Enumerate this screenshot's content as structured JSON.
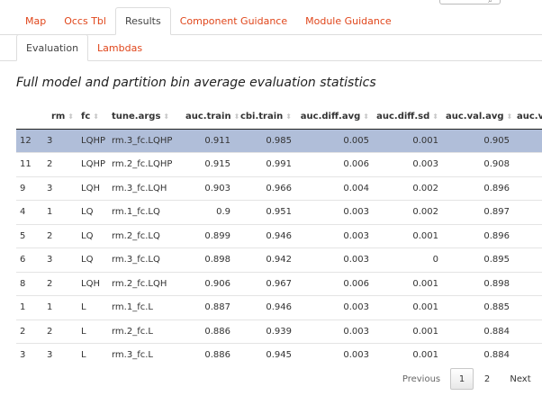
{
  "main_tabs": [
    {
      "label": "Map"
    },
    {
      "label": "Occs Tbl"
    },
    {
      "label": "Results"
    },
    {
      "label": "Component Guidance"
    },
    {
      "label": "Module Guidance"
    }
  ],
  "sub_tabs": [
    {
      "label": "Evaluation"
    },
    {
      "label": "Lambdas"
    }
  ],
  "section_title": "Full model and partition bin average evaluation statistics",
  "table": {
    "headers": [
      "",
      "rm",
      "fc",
      "tune.args",
      "auc.train",
      "cbi.train",
      "auc.diff.avg",
      "auc.diff.sd",
      "auc.val.avg",
      "auc.val.sd"
    ],
    "rows": [
      [
        "12",
        "3",
        "LQHP",
        "rm.3_fc.LQHP",
        "0.911",
        "0.985",
        "0.005",
        "0.001",
        "0.905",
        ""
      ],
      [
        "11",
        "2",
        "LQHP",
        "rm.2_fc.LQHP",
        "0.915",
        "0.991",
        "0.006",
        "0.003",
        "0.908",
        ""
      ],
      [
        "9",
        "3",
        "LQH",
        "rm.3_fc.LQH",
        "0.903",
        "0.966",
        "0.004",
        "0.002",
        "0.896",
        ""
      ],
      [
        "4",
        "1",
        "LQ",
        "rm.1_fc.LQ",
        "0.9",
        "0.951",
        "0.003",
        "0.002",
        "0.897",
        ""
      ],
      [
        "5",
        "2",
        "LQ",
        "rm.2_fc.LQ",
        "0.899",
        "0.946",
        "0.003",
        "0.001",
        "0.896",
        ""
      ],
      [
        "6",
        "3",
        "LQ",
        "rm.3_fc.LQ",
        "0.898",
        "0.942",
        "0.003",
        "0",
        "0.895",
        ""
      ],
      [
        "8",
        "2",
        "LQH",
        "rm.2_fc.LQH",
        "0.906",
        "0.967",
        "0.006",
        "0.001",
        "0.898",
        ""
      ],
      [
        "1",
        "1",
        "L",
        "rm.1_fc.L",
        "0.887",
        "0.946",
        "0.003",
        "0.001",
        "0.885",
        ""
      ],
      [
        "2",
        "2",
        "L",
        "rm.2_fc.L",
        "0.886",
        "0.939",
        "0.003",
        "0.001",
        "0.884",
        ""
      ],
      [
        "3",
        "3",
        "L",
        "rm.3_fc.L",
        "0.886",
        "0.945",
        "0.003",
        "0.001",
        "0.884",
        ""
      ]
    ]
  },
  "pagination": {
    "previous_label": "Previous",
    "page1_label": "1",
    "page2_label": "2",
    "next_label": "Next"
  },
  "colors": {
    "accent": "#e0461b",
    "selected_row": "#b0bed9"
  }
}
